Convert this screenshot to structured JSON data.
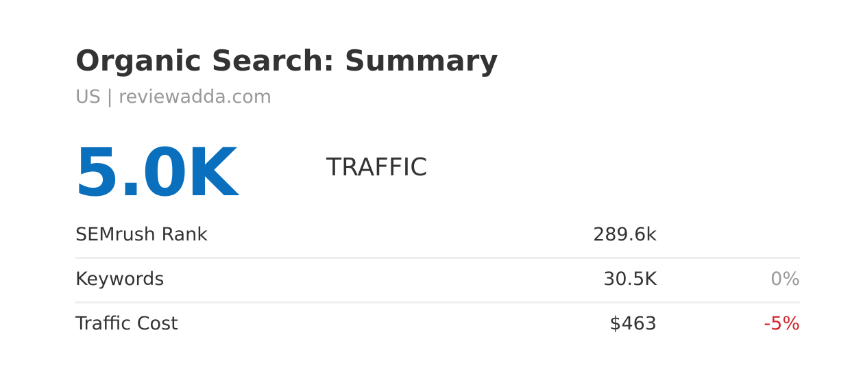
{
  "header": {
    "title": "Organic Search: Summary",
    "subtitle": "US | reviewadda.com"
  },
  "metric": {
    "value": "5.0K",
    "label": "TRAFFIC"
  },
  "table": {
    "rows": [
      [
        "SEMrush Rank",
        "289.6k"
      ],
      [
        "Keywords",
        "30.5K",
        "0%"
      ],
      [
        "Traffic Cost",
        "$463",
        "-5%"
      ]
    ]
  }
}
